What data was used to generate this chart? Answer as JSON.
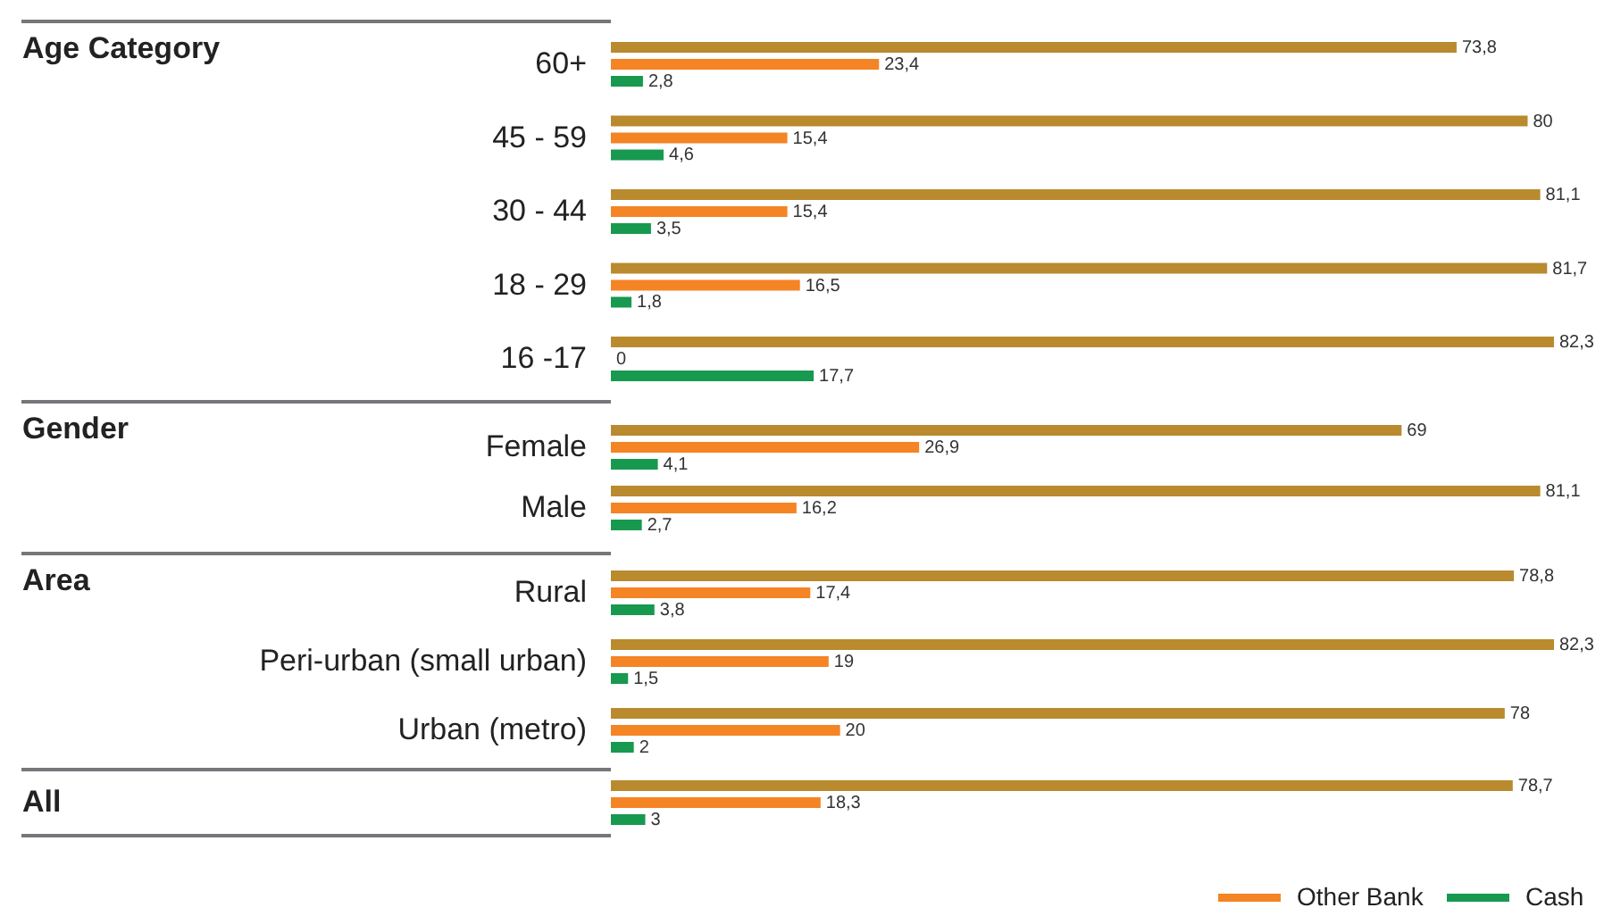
{
  "chart_data": [
    {
      "type": "bar",
      "orientation": "horizontal",
      "ylabel": "Age Category",
      "categories": [
        "60+",
        "45 - 59",
        "30 - 44",
        "18 - 29",
        "16 -17"
      ],
      "series": [
        {
          "color": "#b98a2e",
          "values": [
            73.8,
            80,
            81.1,
            81.7,
            82.3
          ],
          "value_labels": [
            "73,8",
            "80",
            "81,1",
            "81,7",
            "82,3"
          ]
        },
        {
          "color": "#f48424",
          "values": [
            23.4,
            15.4,
            15.4,
            16.5,
            0
          ],
          "value_labels": [
            "23,4",
            "15,4",
            "15,4",
            "16,5",
            "0"
          ]
        },
        {
          "color": "#17994f",
          "values": [
            2.8,
            4.6,
            3.5,
            1.8,
            17.7
          ],
          "value_labels": [
            "2,8",
            "4,6",
            "3,5",
            "1,8",
            "17,7"
          ]
        }
      ]
    },
    {
      "type": "bar",
      "orientation": "horizontal",
      "ylabel": "Gender",
      "categories": [
        "Female",
        "Male"
      ],
      "series": [
        {
          "color": "#b98a2e",
          "values": [
            69,
            81.1
          ],
          "value_labels": [
            "69",
            "81,1"
          ]
        },
        {
          "color": "#f48424",
          "values": [
            26.9,
            16.2
          ],
          "value_labels": [
            "26,9",
            "16,2"
          ]
        },
        {
          "color": "#17994f",
          "values": [
            4.1,
            2.7
          ],
          "value_labels": [
            "4,1",
            "2,7"
          ]
        }
      ]
    },
    {
      "type": "bar",
      "orientation": "horizontal",
      "ylabel": "Area",
      "categories": [
        "Rural",
        "Peri-urban (small urban)",
        "Urban (metro)"
      ],
      "series": [
        {
          "color": "#b98a2e",
          "values": [
            78.8,
            82.3,
            78
          ],
          "value_labels": [
            "78,8",
            "82,3",
            "78"
          ]
        },
        {
          "color": "#f48424",
          "values": [
            17.4,
            19,
            20
          ],
          "value_labels": [
            "17,4",
            "19",
            "20"
          ]
        },
        {
          "color": "#17994f",
          "values": [
            3.8,
            1.5,
            2
          ],
          "value_labels": [
            "3,8",
            "1,5",
            "2"
          ]
        }
      ]
    },
    {
      "type": "bar",
      "orientation": "horizontal",
      "categories": [
        "All"
      ],
      "legend": "bottom right",
      "series": [
        {
          "color": "#b98a2e",
          "values": [
            78.7
          ],
          "value_labels": [
            "78,7"
          ]
        },
        {
          "name": "Other Bank",
          "color": "#f48424",
          "values": [
            18.3
          ],
          "value_labels": [
            "18,3"
          ]
        },
        {
          "name": "Cash",
          "color": "#17994f",
          "values": [
            3
          ],
          "value_labels": [
            "3"
          ]
        }
      ]
    }
  ]
}
